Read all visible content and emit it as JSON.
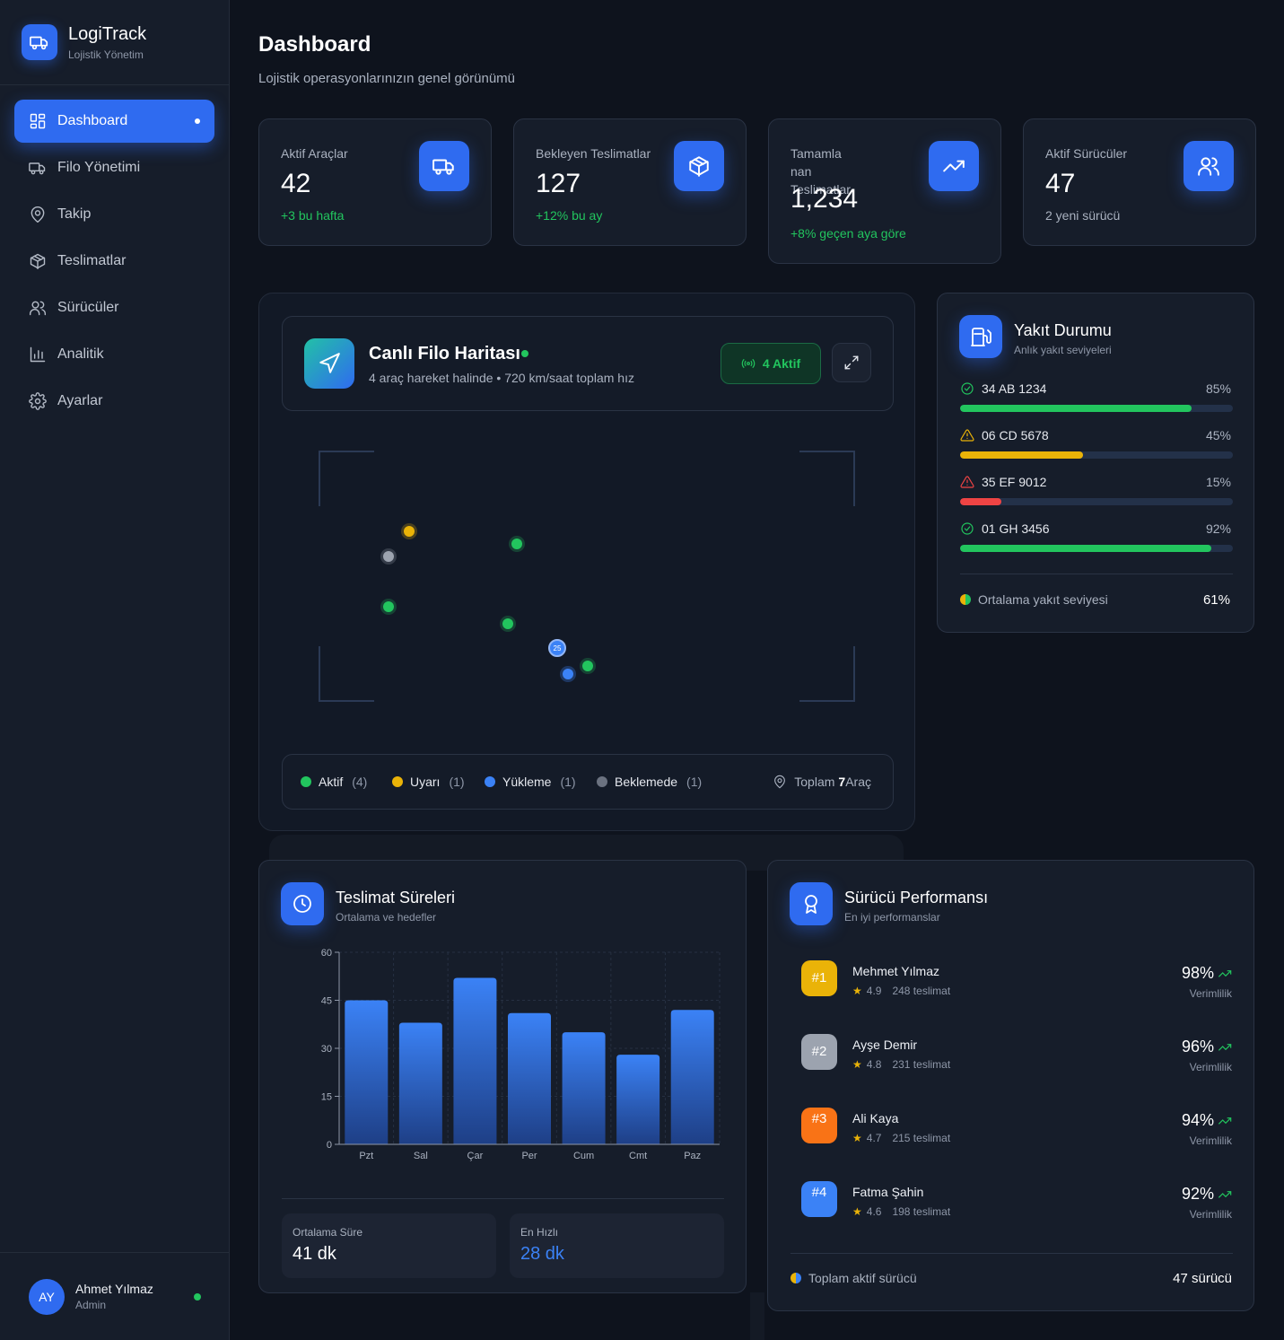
{
  "brand": {
    "title": "LogiTrack",
    "subtitle": "Lojistik Yönetim"
  },
  "sidebar": {
    "items": [
      {
        "label": "Dashboard",
        "icon": "grid-icon",
        "active": true
      },
      {
        "label": "Filo Yönetimi",
        "icon": "truck-icon"
      },
      {
        "label": "Takip",
        "icon": "map-pin-icon"
      },
      {
        "label": "Teslimatlar",
        "icon": "package-icon"
      },
      {
        "label": "Sürücüler",
        "icon": "users-icon"
      },
      {
        "label": "Analitik",
        "icon": "bar-chart-icon"
      },
      {
        "label": "Ayarlar",
        "icon": "gear-icon"
      }
    ]
  },
  "user": {
    "initials": "AY",
    "name": "Ahmet Yılmaz",
    "role": "Admin",
    "status_color": "#22c55e"
  },
  "header": {
    "title": "Dashboard",
    "subtitle": "Lojistik operasyonlarınızın genel görünümü"
  },
  "stats": [
    {
      "label": "Aktif Araçlar",
      "value": "42",
      "note": "+3 bu hafta",
      "icon": "truck-icon"
    },
    {
      "label": "Bekleyen Teslimatlar",
      "value": "127",
      "note": "+12% bu ay",
      "icon": "package-icon"
    },
    {
      "label_lines": [
        "Tamamla",
        "nan",
        "Teslimatlar"
      ],
      "value": "1,234",
      "note": "+8% geçen aya göre",
      "icon": "trending-up-icon"
    },
    {
      "label": "Aktif Sürücüler",
      "value": "47",
      "note": "2 yeni sürücü",
      "icon": "users-icon"
    }
  ],
  "map": {
    "title": "Canlı Filo Haritası",
    "subtitle": "4 araç hareket halinde • 720 km/saat toplam hız",
    "badge": "4 Aktif",
    "legend": [
      {
        "label": "Aktif",
        "count": "(4)",
        "color": "#22c55e"
      },
      {
        "label": "Uyarı",
        "count": "(1)",
        "color": "#eab308"
      },
      {
        "label": "Yükleme",
        "count": "(1)",
        "color": "#3b82f6"
      },
      {
        "label": "Beklemede",
        "count": "(1)",
        "color": "#6b7280"
      }
    ],
    "total_prefix": "Toplam",
    "total_count": "7",
    "total_suffix": "Araç",
    "cluster_label": "25"
  },
  "fuel": {
    "title": "Yakıt Durumu",
    "subtitle": "Anlık yakıt seviyeleri",
    "vehicles": [
      {
        "plate": "34 AB 1234",
        "pct_label": "85%",
        "level": 0.85,
        "color": "#22c55e",
        "status_icon": "check-circle-icon"
      },
      {
        "plate": "06 CD 5678",
        "pct_label": "45%",
        "level": 0.45,
        "color": "#eab308",
        "status_icon": "warning-icon"
      },
      {
        "plate": "35 EF 9012",
        "pct_label": "15%",
        "level": 0.15,
        "color": "#ef4444",
        "status_icon": "warning-icon"
      },
      {
        "plate": "01 GH 3456",
        "pct_label": "92%",
        "level": 0.92,
        "color": "#22c55e",
        "status_icon": "check-circle-icon"
      }
    ],
    "avg_label": "Ortalama yakıt seviyesi",
    "avg_value": "61%"
  },
  "delivery_times": {
    "title": "Teslimat Süreleri",
    "subtitle": "Ortalama ve hedefler",
    "avg_label": "Ortalama Süre",
    "avg_value": "41 dk",
    "fast_label": "En Hızlı",
    "fast_value": "28 dk"
  },
  "chart_data": {
    "type": "bar",
    "categories": [
      "Pzt",
      "Sal",
      "Çar",
      "Per",
      "Cum",
      "Cmt",
      "Paz"
    ],
    "values": [
      45,
      38,
      52,
      41,
      35,
      28,
      42
    ],
    "ylim": [
      0,
      60
    ],
    "yticks": [
      0,
      15,
      30,
      45,
      60
    ],
    "grid": true,
    "bar_color": "#3b82f6"
  },
  "drivers": {
    "title": "Sürücü Performansı",
    "subtitle": "En iyi performanslar",
    "list": [
      {
        "rank": "#1",
        "name": "Mehmet Yılmaz",
        "rating": "4.9",
        "deliveries": "248 teslimat",
        "efficiency": "98%",
        "eff_label": "Verimlilik",
        "color": "#eab308"
      },
      {
        "rank": "#2",
        "name": "Ayşe Demir",
        "rating": "4.8",
        "deliveries": "231 teslimat",
        "efficiency": "96%",
        "eff_label": "Verimlilik",
        "color": "#9ca3af"
      },
      {
        "rank": "#3",
        "name": "Ali Kaya",
        "rating": "4.7",
        "deliveries": "215 teslimat",
        "efficiency": "94%",
        "eff_label": "Verimlilik",
        "color": "#f97316"
      },
      {
        "rank": "#4",
        "name": "Fatma Şahin",
        "rating": "4.6",
        "deliveries": "198 teslimat",
        "efficiency": "92%",
        "eff_label": "Verimlilik",
        "color": "#3b82f6"
      }
    ],
    "total_label": "Toplam aktif sürücü",
    "total_value": "47 sürücü"
  }
}
